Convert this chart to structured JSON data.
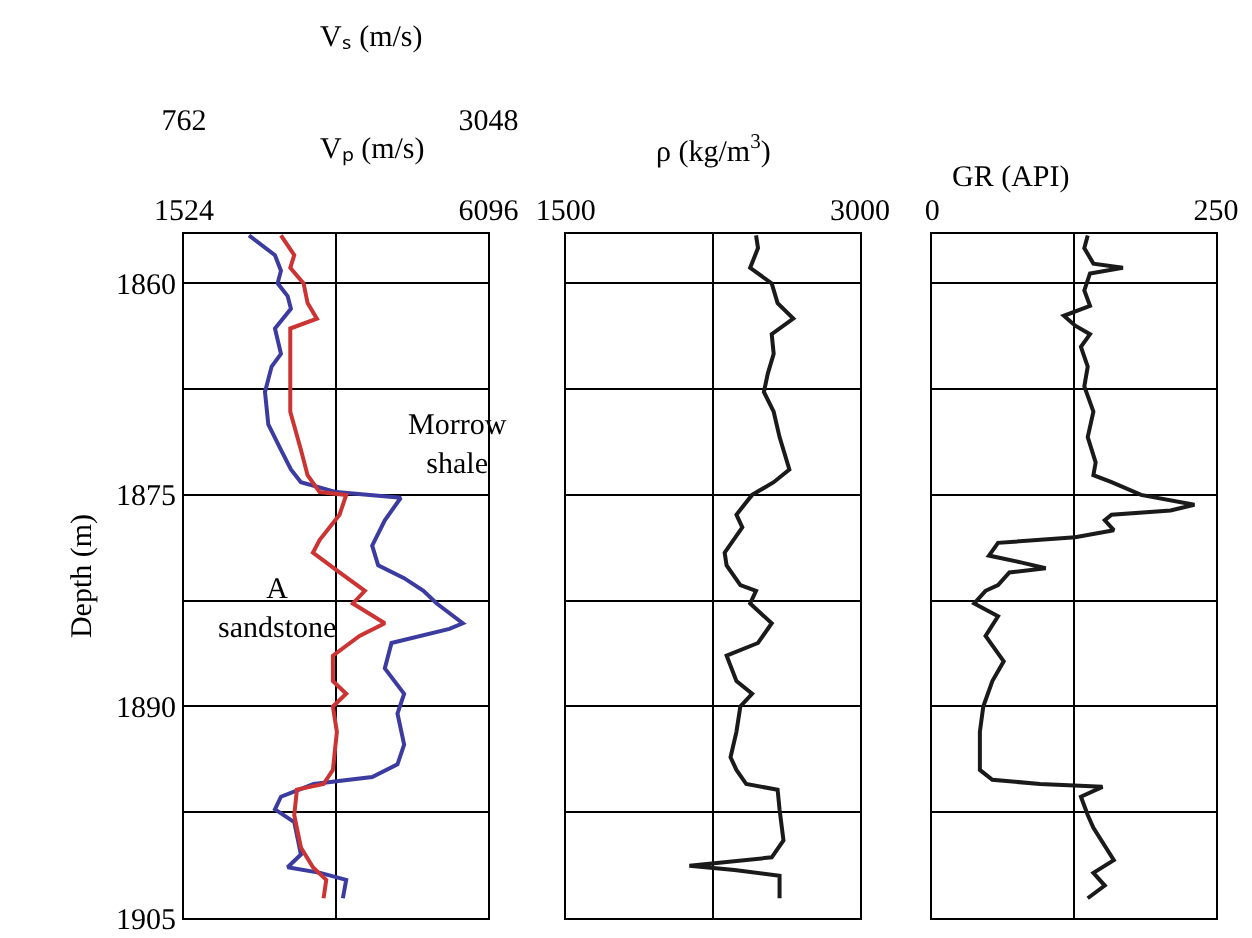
{
  "chart_data": [
    {
      "type": "line",
      "xlabel": "Vₚ (m/s)",
      "x2label": "Vₛ (m/s)",
      "ylabel": "Depth (m)",
      "xlim": [
        1524,
        6096
      ],
      "xticks": [
        1524,
        {
          "value": 3810,
          "label": null
        },
        6096
      ],
      "x2lim": [
        762,
        3048
      ],
      "x2ticks": [
        762,
        3048
      ],
      "ylim": [
        1905,
        1856.5
      ],
      "yticks": [
        1860,
        {
          "value": 1867.5,
          "label": null
        },
        1875,
        {
          "value": 1882.5,
          "label": null
        },
        1890,
        {
          "value": 1897.5,
          "label": null
        },
        1905
      ],
      "grid": true,
      "series": [
        {
          "color": "#3c3ca0",
          "x": [
            2500,
            2890,
            2980,
            2930,
            3080,
            3130,
            2890,
            2980,
            2840,
            2740,
            2790,
            2980,
            3130,
            3280,
            3810,
            4780,
            4540,
            4350,
            4440,
            4830,
            5120,
            5320,
            5710,
            5510,
            4640,
            4540,
            4830,
            4730,
            4830,
            4730,
            4350,
            3470,
            2980,
            2890,
            3180,
            3280,
            3080,
            3570,
            3960,
            3910
          ],
          "values": [
            1856.6,
            1858.0,
            1859.1,
            1860,
            1860.9,
            1861.8,
            1863.2,
            1865,
            1865.9,
            1867.7,
            1870,
            1871.8,
            1873.2,
            1874.1,
            1874.8,
            1875.2,
            1876.8,
            1878.6,
            1880,
            1880.9,
            1881.8,
            1882.7,
            1884.1,
            1884.5,
            1885.5,
            1887.3,
            1889.1,
            1890.5,
            1892.7,
            1894.1,
            1895,
            1895.5,
            1896.4,
            1897.3,
            1898.2,
            1900.5,
            1901.4,
            1901.8,
            1902.3,
            1903.6
          ]
        },
        {
          "color": "#cc3333",
          "axis": "x2",
          "x": [
            1490,
            1590,
            1560,
            1660,
            1690,
            1760,
            1560,
            1560,
            1560,
            1640,
            1690,
            1780,
            1980,
            1930,
            1780,
            1730,
            1930,
            2120,
            2030,
            2270,
            2080,
            1880,
            1880,
            1980,
            1880,
            1910,
            1880,
            1810,
            1610,
            1590,
            1640,
            1730,
            1830,
            1810
          ],
          "values": [
            1856.6,
            1858.0,
            1858.9,
            1860,
            1861.4,
            1862.5,
            1863.2,
            1866.8,
            1869.1,
            1871.8,
            1873.6,
            1874.8,
            1875,
            1876.4,
            1878.2,
            1879.1,
            1880.5,
            1881.8,
            1882.7,
            1884.1,
            1885,
            1886.4,
            1888.2,
            1889.1,
            1890,
            1891.8,
            1894.5,
            1895.5,
            1895.9,
            1897.7,
            1900,
            1901.4,
            1902.3,
            1903.6
          ]
        }
      ],
      "annotations": [
        "Morrow\nshale",
        "A\nsandstone"
      ]
    },
    {
      "type": "line",
      "xlabel": "ρ (kg/m$^{3}$)",
      "xlim": [
        1500,
        3000
      ],
      "xticks": [
        1500,
        {
          "value": 2250,
          "label": null
        },
        3000
      ],
      "ylim": [
        1905,
        1856.5
      ],
      "yticks": [
        1860,
        {
          "value": 1867.5,
          "label": null
        },
        1875,
        {
          "value": 1882.5,
          "label": null
        },
        1890,
        {
          "value": 1897.5,
          "label": null
        },
        1905
      ],
      "tick_labels": "x",
      "grid": true,
      "series": [
        {
          "color": "#1a1a1a",
          "x": [
            2470,
            2480,
            2440,
            2550,
            2580,
            2660,
            2550,
            2560,
            2530,
            2510,
            2560,
            2590,
            2640,
            2560,
            2450,
            2370,
            2400,
            2310,
            2320,
            2390,
            2470,
            2440,
            2550,
            2480,
            2320,
            2370,
            2450,
            2390,
            2370,
            2340,
            2370,
            2420,
            2580,
            2590,
            2610,
            2550,
            2130,
            2360,
            2590,
            2590
          ],
          "values": [
            1856.6,
            1857.5,
            1858.9,
            1860,
            1861.4,
            1862.5,
            1863.6,
            1865,
            1866.4,
            1867.7,
            1869.1,
            1870.9,
            1873.2,
            1874.1,
            1875,
            1876.4,
            1877.3,
            1879.1,
            1880,
            1881.4,
            1881.8,
            1882.7,
            1884.1,
            1885.5,
            1886.4,
            1888.2,
            1889.1,
            1890,
            1891.8,
            1893.6,
            1894.5,
            1895.5,
            1895.9,
            1897.3,
            1899.5,
            1900.7,
            1901.3,
            1901.6,
            1902,
            1903.6
          ]
        }
      ]
    },
    {
      "type": "line",
      "xlabel": "GR (API)",
      "xlim": [
        0,
        250
      ],
      "xticks": [
        0,
        {
          "value": 125,
          "label": null
        },
        250
      ],
      "ylim": [
        1905,
        1856.5
      ],
      "yticks": [
        1860,
        {
          "value": 1867.5,
          "label": null
        },
        1875,
        {
          "value": 1882.5,
          "label": null
        },
        1890,
        {
          "value": 1897.5,
          "label": null
        },
        1905
      ],
      "tick_labels": "x",
      "grid": true,
      "series": [
        {
          "color": "#1a1a1a",
          "x": [
            137,
            134,
            142,
            168,
            139,
            134,
            139,
            116,
            126,
            139,
            131,
            137,
            134,
            142,
            137,
            144,
            142,
            158,
            184,
            231,
            210,
            158,
            152,
            160,
            126,
            58,
            50,
            79,
            100,
            68,
            58,
            47,
            37,
            58,
            47,
            63,
            53,
            45,
            42,
            42,
            53,
            95,
            150,
            131,
            137,
            142,
            160,
            142,
            152,
            137
          ],
          "values": [
            1856.6,
            1857.5,
            1858.6,
            1858.9,
            1859.3,
            1860.5,
            1861.6,
            1862.3,
            1863,
            1863.6,
            1864.5,
            1865.9,
            1867.3,
            1869.1,
            1870.9,
            1872.7,
            1873.6,
            1874.1,
            1875,
            1875.7,
            1876.1,
            1876.4,
            1876.8,
            1877.5,
            1878,
            1878.4,
            1879.3,
            1879.8,
            1880.2,
            1880.5,
            1881.4,
            1881.8,
            1882.7,
            1883.6,
            1885,
            1886.8,
            1888.2,
            1890,
            1891.8,
            1894.5,
            1895.2,
            1895.5,
            1895.7,
            1896.4,
            1897.7,
            1898.6,
            1900.9,
            1901.8,
            1902.7,
            1903.6
          ]
        }
      ]
    }
  ]
}
